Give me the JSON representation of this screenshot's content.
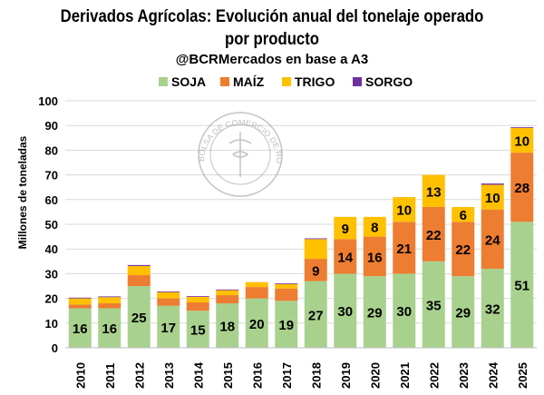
{
  "chart_data": {
    "type": "bar",
    "stacked": true,
    "title": "Derivados Agrícolas: Evolución anual del tonelaje operado por producto",
    "title_lines": [
      "Derivados Agrícolas: Evolución anual del tonelaje operado",
      "por producto"
    ],
    "subtitle": "@BCRMercados en base a A3",
    "ylabel": "Millones de toneladas",
    "xlabel": "",
    "ylim": [
      0,
      100
    ],
    "yticks": [
      0,
      10,
      20,
      30,
      40,
      50,
      60,
      70,
      80,
      90,
      100
    ],
    "grid": true,
    "legend_position": "top",
    "categories": [
      "2010",
      "2011",
      "2012",
      "2013",
      "2014",
      "2015",
      "2016",
      "2017",
      "2018",
      "2019",
      "2020",
      "2021",
      "2022",
      "2023",
      "2024",
      "2025"
    ],
    "series": [
      {
        "name": "SOJA",
        "color": "#A9D18E",
        "values": [
          16,
          16,
          25,
          17,
          15,
          18,
          20,
          19,
          27,
          30,
          29,
          30,
          35,
          29,
          32,
          51
        ],
        "labels": [
          true,
          true,
          true,
          true,
          true,
          true,
          true,
          true,
          true,
          true,
          true,
          true,
          true,
          true,
          true,
          true
        ]
      },
      {
        "name": "MAÍZ",
        "color": "#ED7D31",
        "values": [
          1.5,
          2,
          4.4,
          3,
          3.4,
          3.3,
          4.6,
          5,
          9,
          14,
          16,
          21,
          22,
          22,
          24,
          28
        ],
        "labels": [
          false,
          false,
          false,
          false,
          false,
          false,
          false,
          false,
          true,
          true,
          true,
          true,
          true,
          true,
          true,
          true
        ]
      },
      {
        "name": "TRIGO",
        "color": "#FFC000",
        "values": [
          2.5,
          2.5,
          3.7,
          2.5,
          2.2,
          2,
          2,
          1.8,
          8,
          9,
          8,
          10,
          13,
          6,
          10,
          10
        ],
        "labels": [
          false,
          false,
          false,
          false,
          false,
          false,
          false,
          false,
          false,
          true,
          true,
          true,
          true,
          true,
          true,
          true
        ]
      },
      {
        "name": "SORGO",
        "color": "#7030A0",
        "values": [
          0.3,
          0.3,
          0.4,
          0.3,
          0.3,
          0.3,
          0,
          0.3,
          0.3,
          0,
          0,
          0,
          0,
          0,
          0.5,
          0.3
        ],
        "labels": [
          false,
          false,
          false,
          false,
          false,
          false,
          false,
          false,
          false,
          false,
          false,
          false,
          false,
          false,
          false,
          false
        ]
      }
    ]
  },
  "watermark": "BOLSA DE COMERCIO DE ROSARIO"
}
